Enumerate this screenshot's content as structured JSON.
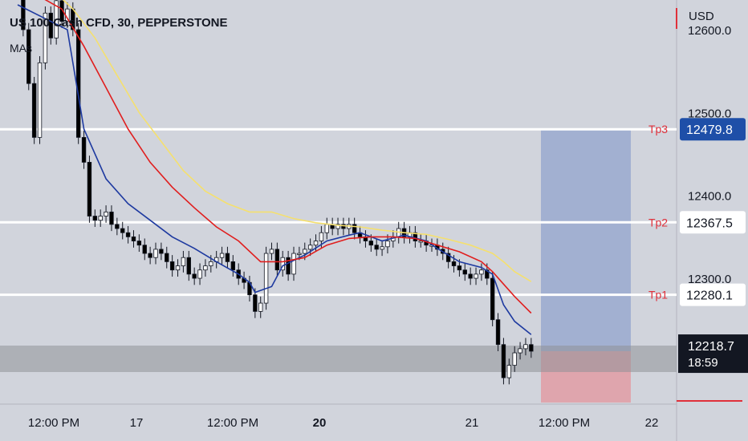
{
  "header": {
    "title": "US 100 Cash CFD, 30, PEPPERSTONE",
    "indicator": "MAs",
    "currency": "USD"
  },
  "colors": {
    "background": "#d1d4dc",
    "up_candle": "#ffffff",
    "down_candle": "#000000",
    "ma_fast": "#1e3aa0",
    "ma_mid": "#e01e1e",
    "ma_slow": "#f5e06e",
    "target_box": "#9aa9cf",
    "stop_box": "#dfa5ad",
    "tp_label": "#e0303a",
    "price_tag": "#1e4fa8"
  },
  "chart_data": {
    "type": "candlestick",
    "y_unit": "USD",
    "ylim": [
      12140,
      12670
    ],
    "y_ticks": [
      "12600.0",
      "12500.0",
      "12400.0",
      "12300.0"
    ],
    "x_ticks": [
      "12:00 PM",
      "17",
      "12:00 PM",
      "20",
      "21",
      "12:00 PM",
      "22"
    ],
    "levels": [
      {
        "label": "Tp3",
        "value": 12479.8,
        "price_text": "12479.8"
      },
      {
        "label": "Tp2",
        "value": 12367.5,
        "price_text": "12367.5"
      },
      {
        "label": "Tp1",
        "value": 12280.1,
        "price_text": "12280.1"
      }
    ],
    "last_price": {
      "value": 12218.7,
      "price_text": "12218.7",
      "countdown": "18:59"
    },
    "position": {
      "target": 12479.8,
      "entry": 12212,
      "stop": 12150
    },
    "series": [
      {
        "kind": "candles",
        "close": [
          12650,
          12600,
          12535,
          12470,
          12560,
          12620,
          12590,
          12635,
          12610,
          12625,
          12600,
          12470,
          12440,
          12375,
          12370,
          12375,
          12380,
          12365,
          12360,
          12355,
          12350,
          12345,
          12340,
          12330,
          12325,
          12335,
          12330,
          12320,
          12310,
          12315,
          12325,
          12305,
          12300,
          12310,
          12315,
          12320,
          12325,
          12330,
          12320,
          12310,
          12300,
          12295,
          12280,
          12260,
          12270,
          12330,
          12335,
          12310,
          12325,
          12305,
          12330,
          12330,
          12335,
          12340,
          12345,
          12355,
          12365,
          12360,
          12365,
          12360,
          12365,
          12355,
          12350,
          12345,
          12340,
          12335,
          12338,
          12345,
          12350,
          12360,
          12350,
          12355,
          12345,
          12345,
          12340,
          12340,
          12335,
          12330,
          12320,
          12315,
          12310,
          12305,
          12300,
          12305,
          12310,
          12300,
          12250,
          12220,
          12180,
          12195,
          12210,
          12215,
          12220,
          12212
        ]
      },
      {
        "kind": "ma",
        "name": "",
        "color": "#1e3aa0",
        "values": [
          [
            0,
            12630
          ],
          [
            6,
            12610
          ],
          [
            9,
            12600
          ],
          [
            10,
            12560
          ],
          [
            12,
            12480
          ],
          [
            16,
            12420
          ],
          [
            20,
            12390
          ],
          [
            24,
            12370
          ],
          [
            28,
            12350
          ],
          [
            32,
            12336
          ],
          [
            36,
            12320
          ],
          [
            40,
            12305
          ],
          [
            42,
            12295
          ],
          [
            43,
            12283
          ],
          [
            46,
            12290
          ],
          [
            48,
            12315
          ],
          [
            52,
            12328
          ],
          [
            56,
            12345
          ],
          [
            60,
            12352
          ],
          [
            62,
            12355
          ],
          [
            66,
            12345
          ],
          [
            70,
            12352
          ],
          [
            74,
            12345
          ],
          [
            76,
            12336
          ],
          [
            80,
            12320
          ],
          [
            84,
            12313
          ],
          [
            86,
            12305
          ],
          [
            88,
            12268
          ],
          [
            90,
            12248
          ],
          [
            93,
            12232
          ]
        ]
      },
      {
        "kind": "ma",
        "name": "",
        "color": "#e01e1e",
        "values": [
          [
            0,
            12645
          ],
          [
            4,
            12640
          ],
          [
            8,
            12625
          ],
          [
            12,
            12580
          ],
          [
            16,
            12530
          ],
          [
            20,
            12480
          ],
          [
            24,
            12440
          ],
          [
            28,
            12410
          ],
          [
            32,
            12385
          ],
          [
            36,
            12362
          ],
          [
            40,
            12345
          ],
          [
            44,
            12320
          ],
          [
            48,
            12320
          ],
          [
            52,
            12325
          ],
          [
            56,
            12340
          ],
          [
            60,
            12348
          ],
          [
            64,
            12350
          ],
          [
            68,
            12350
          ],
          [
            72,
            12348
          ],
          [
            76,
            12340
          ],
          [
            80,
            12332
          ],
          [
            84,
            12320
          ],
          [
            86,
            12308
          ],
          [
            88,
            12293
          ],
          [
            90,
            12278
          ],
          [
            93,
            12258
          ]
        ]
      },
      {
        "kind": "ma",
        "name": "",
        "color": "#f5e06e",
        "values": [
          [
            0,
            12670
          ],
          [
            6,
            12650
          ],
          [
            10,
            12625
          ],
          [
            14,
            12590
          ],
          [
            18,
            12545
          ],
          [
            22,
            12500
          ],
          [
            26,
            12465
          ],
          [
            30,
            12430
          ],
          [
            34,
            12405
          ],
          [
            38,
            12390
          ],
          [
            42,
            12380
          ],
          [
            46,
            12380
          ],
          [
            50,
            12372
          ],
          [
            54,
            12367
          ],
          [
            58,
            12364
          ],
          [
            62,
            12362
          ],
          [
            66,
            12358
          ],
          [
            70,
            12355
          ],
          [
            74,
            12353
          ],
          [
            78,
            12347
          ],
          [
            82,
            12340
          ],
          [
            86,
            12330
          ],
          [
            88,
            12320
          ],
          [
            90,
            12308
          ],
          [
            93,
            12296
          ]
        ]
      }
    ]
  }
}
